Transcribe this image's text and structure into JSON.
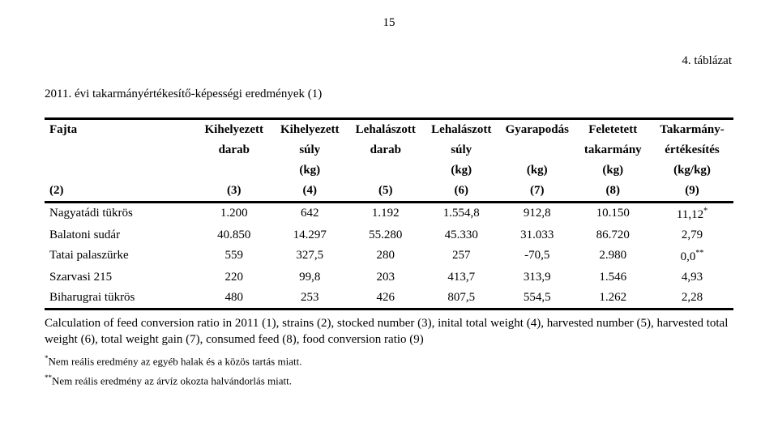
{
  "page_number": "15",
  "table_label": "4. táblázat",
  "title": "2011. évi takarmányértékesítő-képességi eredmények (1)",
  "columns": [
    {
      "l1": "Fajta",
      "l2": "",
      "l3": "",
      "l4": "(2)"
    },
    {
      "l1": "Kihelyezett",
      "l2": "darab",
      "l3": "",
      "l4": "(3)"
    },
    {
      "l1": "Kihelyezett",
      "l2": "súly",
      "l3": "(kg)",
      "l4": "(4)"
    },
    {
      "l1": "Lehalászott",
      "l2": "darab",
      "l3": "",
      "l4": "(5)"
    },
    {
      "l1": "Lehalászott",
      "l2": "súly",
      "l3": "(kg)",
      "l4": "(6)"
    },
    {
      "l1": "Gyarapodás",
      "l2": "",
      "l3": "(kg)",
      "l4": "(7)"
    },
    {
      "l1": "Feletetett",
      "l2": "takarmány",
      "l3": "(kg)",
      "l4": "(8)"
    },
    {
      "l1": "Takarmány-",
      "l2": "értékesítés",
      "l3": "(kg/kg)",
      "l4": "(9)"
    }
  ],
  "rows": [
    {
      "name": "Nagyatádi tükrös",
      "c": [
        "1.200",
        "642",
        "1.192",
        "1.554,8",
        "912,8",
        "10.150",
        "11,12"
      ],
      "sup": "*"
    },
    {
      "name": "Balatoni sudár",
      "c": [
        "40.850",
        "14.297",
        "55.280",
        "45.330",
        "31.033",
        "86.720",
        "2,79"
      ],
      "sup": ""
    },
    {
      "name": "Tatai palaszürke",
      "c": [
        "559",
        "327,5",
        "280",
        "257",
        "-70,5",
        "2.980",
        "0,0"
      ],
      "sup": "**"
    },
    {
      "name": "Szarvasi 215",
      "c": [
        "220",
        "99,8",
        "203",
        "413,7",
        "313,9",
        "1.546",
        "4,93"
      ],
      "sup": ""
    },
    {
      "name": "Biharugrai tükrös",
      "c": [
        "480",
        "253",
        "426",
        "807,5",
        "554,5",
        "1.262",
        "2,28"
      ],
      "sup": ""
    }
  ],
  "caption": "Calculation of feed conversion ratio in 2011 (1), strains (2), stocked number (3), inital total weight (4), harvested number (5), harvested total weight (6), total weight gain (7), consumed feed (8), food conversion ratio (9)",
  "footnote1_mark": "*",
  "footnote1_text": "Nem reális eredmény az egyéb halak és a közös tartás miatt.",
  "footnote2_mark": "**",
  "footnote2_text": "Nem reális eredmény az árvíz okozta halvándorlás miatt.",
  "col_widths": [
    "22%",
    "11%",
    "11%",
    "11%",
    "11%",
    "11%",
    "11%",
    "12%"
  ]
}
